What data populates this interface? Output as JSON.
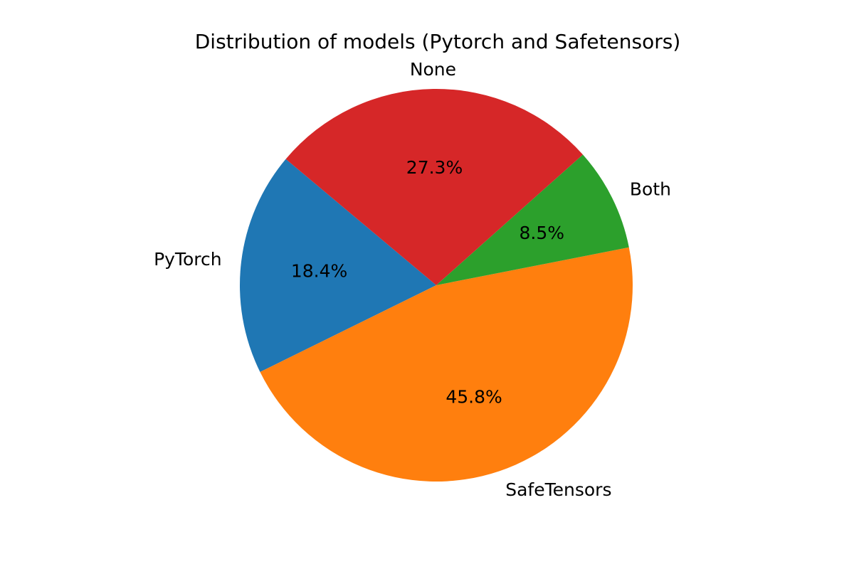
{
  "chart_data": {
    "type": "pie",
    "title": "Distribution of models (Pytorch and Safetensors)",
    "slices": [
      {
        "label": "PyTorch",
        "value": 18.4,
        "pct_label": "18.4%",
        "color": "#1f77b4"
      },
      {
        "label": "SafeTensors",
        "value": 45.8,
        "pct_label": "45.8%",
        "color": "#ff7f0e"
      },
      {
        "label": "Both",
        "value": 8.5,
        "pct_label": "8.5%",
        "color": "#2ca02c"
      },
      {
        "label": "None",
        "value": 27.3,
        "pct_label": "27.3%",
        "color": "#d62728"
      }
    ],
    "start_angle_deg": 140,
    "direction": "counterclockwise"
  }
}
